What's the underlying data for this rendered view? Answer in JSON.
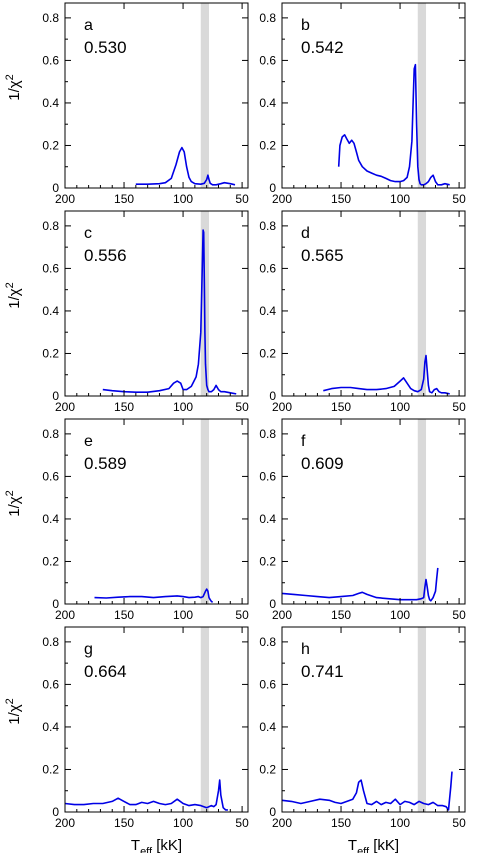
{
  "chart_data": {
    "type": "line",
    "xlabel": "T",
    "xlabel_sub": "eff",
    "xlabel_unit": " [kK]",
    "ylabel": "1/χ",
    "ylabel_sup": "2",
    "xlim": [
      200,
      45
    ],
    "ylim": [
      0,
      0.87
    ],
    "x_ticks": [
      200,
      150,
      100,
      50
    ],
    "y_ticks": [
      0,
      0.2,
      0.4,
      0.6,
      0.8
    ],
    "y_tick_labels": [
      "0",
      "0.2",
      "0.4",
      "0.6",
      "0.8"
    ],
    "shaded_band": {
      "from": 85,
      "to": 78,
      "color": "#d9d9d9"
    },
    "line_color": "#0000e6",
    "panels": [
      {
        "letter": "a",
        "value": "0.530",
        "x": [
          140,
          130,
          120,
          115,
          110,
          106,
          103,
          101,
          99,
          97,
          95,
          93,
          90,
          85,
          82,
          80,
          79,
          78,
          77,
          75,
          72,
          68,
          65,
          60,
          56
        ],
        "y": [
          0.018,
          0.018,
          0.02,
          0.025,
          0.045,
          0.11,
          0.17,
          0.19,
          0.17,
          0.1,
          0.05,
          0.03,
          0.02,
          0.018,
          0.022,
          0.04,
          0.06,
          0.04,
          0.022,
          0.015,
          0.015,
          0.02,
          0.025,
          0.02,
          0.015
        ]
      },
      {
        "letter": "b",
        "value": "0.542",
        "x": [
          152,
          151,
          149,
          147,
          145,
          143,
          141,
          139,
          137,
          135,
          132,
          128,
          124,
          120,
          116,
          112,
          108,
          104,
          100,
          97,
          94,
          92,
          90,
          89,
          88,
          87,
          86,
          85,
          84,
          83,
          82,
          81,
          80,
          78,
          76,
          74,
          72,
          70,
          68,
          65,
          62,
          58
        ],
        "y": [
          0.1,
          0.2,
          0.24,
          0.25,
          0.23,
          0.21,
          0.225,
          0.21,
          0.17,
          0.13,
          0.1,
          0.08,
          0.07,
          0.06,
          0.055,
          0.045,
          0.035,
          0.03,
          0.03,
          0.035,
          0.05,
          0.1,
          0.22,
          0.4,
          0.56,
          0.58,
          0.3,
          0.1,
          0.04,
          0.02,
          0.015,
          0.015,
          0.015,
          0.02,
          0.03,
          0.05,
          0.06,
          0.03,
          0.015,
          0.015,
          0.02,
          0.015
        ]
      },
      {
        "letter": "c",
        "value": "0.556",
        "x": [
          168,
          160,
          150,
          140,
          130,
          120,
          112,
          108,
          105,
          102,
          100,
          97,
          93,
          89,
          87,
          85,
          84,
          83,
          82.5,
          82,
          81.5,
          81,
          80,
          79,
          78,
          76,
          74,
          72,
          70,
          68,
          65,
          60,
          55
        ],
        "y": [
          0.03,
          0.025,
          0.02,
          0.018,
          0.018,
          0.025,
          0.035,
          0.06,
          0.07,
          0.06,
          0.03,
          0.03,
          0.045,
          0.09,
          0.15,
          0.3,
          0.55,
          0.78,
          0.77,
          0.55,
          0.3,
          0.15,
          0.05,
          0.03,
          0.02,
          0.02,
          0.03,
          0.05,
          0.03,
          0.02,
          0.02,
          0.015,
          0.01
        ]
      },
      {
        "letter": "d",
        "value": "0.565",
        "x": [
          165,
          158,
          150,
          142,
          135,
          128,
          120,
          112,
          105,
          100,
          97,
          94,
          91,
          88,
          85,
          82,
          80,
          79,
          78,
          77,
          76,
          75,
          73,
          71,
          69,
          67,
          65,
          62,
          58
        ],
        "y": [
          0.025,
          0.035,
          0.04,
          0.04,
          0.035,
          0.03,
          0.03,
          0.035,
          0.045,
          0.07,
          0.085,
          0.06,
          0.035,
          0.025,
          0.02,
          0.03,
          0.08,
          0.16,
          0.19,
          0.12,
          0.05,
          0.02,
          0.015,
          0.03,
          0.035,
          0.02,
          0.015,
          0.015,
          0.01
        ]
      },
      {
        "letter": "e",
        "value": "0.589",
        "x": [
          175,
          165,
          155,
          145,
          135,
          125,
          115,
          105,
          100,
          95,
          90,
          87,
          85,
          83,
          81,
          80,
          79,
          78,
          77,
          76,
          75
        ],
        "y": [
          0.03,
          0.028,
          0.032,
          0.035,
          0.035,
          0.03,
          0.035,
          0.038,
          0.035,
          0.03,
          0.032,
          0.035,
          0.03,
          0.035,
          0.06,
          0.07,
          0.06,
          0.03,
          0.02,
          0.012,
          0.008
        ]
      },
      {
        "letter": "f",
        "value": "0.609",
        "x": [
          200,
          190,
          180,
          170,
          160,
          150,
          140,
          135,
          132,
          128,
          120,
          110,
          100,
          92,
          86,
          82,
          80,
          79,
          78,
          77,
          76,
          75,
          74,
          72,
          70,
          69,
          68
        ],
        "y": [
          0.05,
          0.045,
          0.04,
          0.035,
          0.03,
          0.035,
          0.04,
          0.05,
          0.055,
          0.045,
          0.03,
          0.025,
          0.02,
          0.02,
          0.02,
          0.025,
          0.03,
          0.08,
          0.115,
          0.08,
          0.04,
          0.02,
          0.015,
          0.03,
          0.06,
          0.12,
          0.17
        ]
      },
      {
        "letter": "g",
        "value": "0.664",
        "x": [
          200,
          192,
          184,
          176,
          168,
          160,
          155,
          150,
          145,
          140,
          135,
          130,
          125,
          120,
          115,
          110,
          105,
          100,
          95,
          90,
          85,
          80,
          76,
          74,
          72,
          70,
          69,
          68,
          66,
          64,
          62
        ],
        "y": [
          0.04,
          0.035,
          0.035,
          0.04,
          0.04,
          0.05,
          0.065,
          0.05,
          0.035,
          0.035,
          0.045,
          0.04,
          0.05,
          0.04,
          0.035,
          0.04,
          0.06,
          0.04,
          0.03,
          0.035,
          0.03,
          0.02,
          0.03,
          0.025,
          0.035,
          0.1,
          0.15,
          0.08,
          0.02,
          0.01,
          0.01
        ]
      },
      {
        "letter": "h",
        "value": "0.741",
        "x": [
          200,
          192,
          184,
          176,
          168,
          160,
          155,
          150,
          145,
          140,
          137,
          135,
          133,
          131,
          128,
          124,
          120,
          116,
          112,
          108,
          104,
          100,
          96,
          92,
          88,
          84,
          80,
          76,
          72,
          68,
          64,
          61,
          59,
          57,
          56
        ],
        "y": [
          0.055,
          0.05,
          0.04,
          0.05,
          0.06,
          0.055,
          0.045,
          0.04,
          0.05,
          0.06,
          0.09,
          0.14,
          0.15,
          0.1,
          0.04,
          0.035,
          0.05,
          0.035,
          0.045,
          0.04,
          0.06,
          0.035,
          0.05,
          0.045,
          0.035,
          0.05,
          0.04,
          0.035,
          0.045,
          0.03,
          0.03,
          0.025,
          0.01,
          0.12,
          0.19
        ]
      }
    ]
  }
}
